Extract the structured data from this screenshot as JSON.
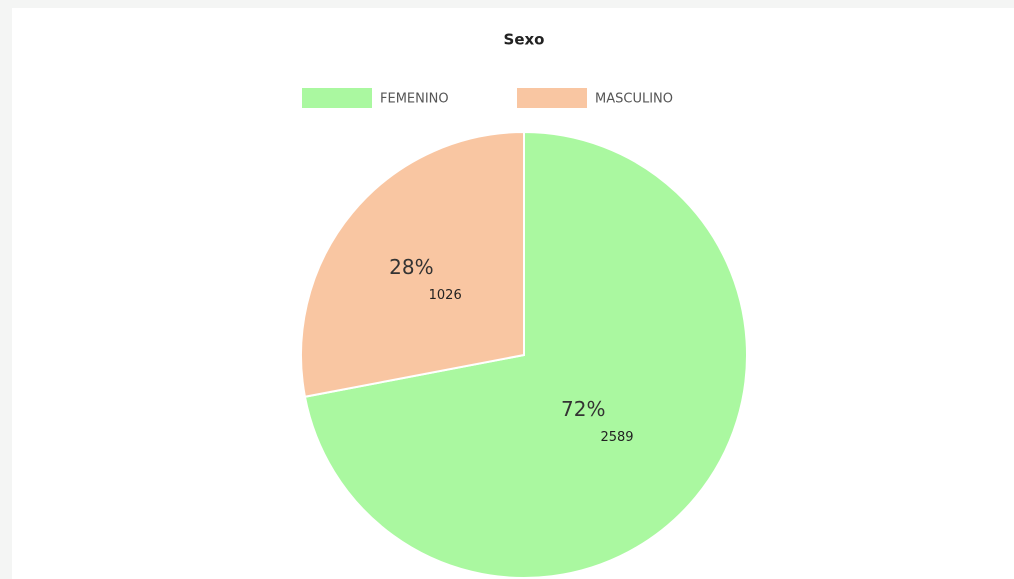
{
  "chart_data": {
    "type": "pie",
    "title": "Sexo",
    "categories": [
      "FEMENINO",
      "MASCULINO"
    ],
    "values": [
      72,
      28
    ],
    "value_labels": [
      "72%",
      "28%"
    ],
    "counts": [
      2589,
      1026
    ],
    "colors": [
      "#aaf8a0",
      "#f9c6a2"
    ],
    "legend": "top"
  }
}
